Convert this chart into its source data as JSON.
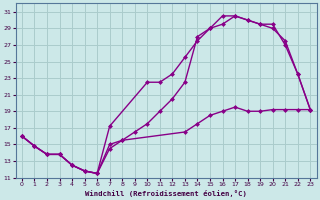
{
  "xlabel": "Windchill (Refroidissement éolien,°C)",
  "bg_color": "#cce8e8",
  "grid_color": "#aacccc",
  "line_color": "#880088",
  "markersize": 2.5,
  "linewidth": 1.0,
  "xlim": [
    -0.5,
    23.5
  ],
  "ylim": [
    11,
    32
  ],
  "xticks": [
    0,
    1,
    2,
    3,
    4,
    5,
    6,
    7,
    8,
    9,
    10,
    11,
    12,
    13,
    14,
    15,
    16,
    17,
    18,
    19,
    20,
    21,
    22,
    23
  ],
  "yticks": [
    11,
    13,
    15,
    17,
    19,
    21,
    23,
    25,
    27,
    29,
    31
  ],
  "series1_x": [
    0,
    1,
    2,
    3,
    4,
    5,
    6,
    7,
    8,
    13,
    14,
    15,
    16,
    17,
    18,
    19,
    20,
    21,
    22,
    23
  ],
  "series1_y": [
    16.0,
    14.8,
    13.8,
    13.8,
    12.5,
    11.8,
    11.5,
    15.0,
    15.5,
    16.5,
    17.5,
    18.5,
    19.0,
    19.5,
    19.0,
    19.0,
    19.2,
    19.2,
    19.2,
    19.2
  ],
  "series2_x": [
    0,
    1,
    2,
    3,
    4,
    5,
    6,
    7,
    10,
    11,
    12,
    13,
    14,
    15,
    16,
    17,
    18,
    19,
    20,
    21,
    22,
    23
  ],
  "series2_y": [
    16.0,
    14.8,
    13.8,
    13.8,
    12.5,
    11.8,
    11.5,
    17.2,
    22.5,
    22.5,
    23.5,
    25.5,
    27.5,
    29.0,
    29.5,
    30.5,
    30.0,
    29.5,
    29.0,
    27.5,
    23.5,
    19.2
  ],
  "series3_x": [
    0,
    1,
    2,
    3,
    4,
    5,
    6,
    7,
    8,
    9,
    10,
    11,
    12,
    13,
    14,
    15,
    16,
    17,
    18,
    19,
    20,
    21,
    22,
    23
  ],
  "series3_y": [
    16.0,
    14.8,
    13.8,
    13.8,
    12.5,
    11.8,
    11.5,
    14.5,
    15.5,
    16.5,
    17.5,
    19.0,
    20.5,
    22.5,
    28.0,
    29.0,
    30.5,
    30.5,
    30.0,
    29.5,
    29.5,
    27.0,
    23.5,
    19.2
  ]
}
